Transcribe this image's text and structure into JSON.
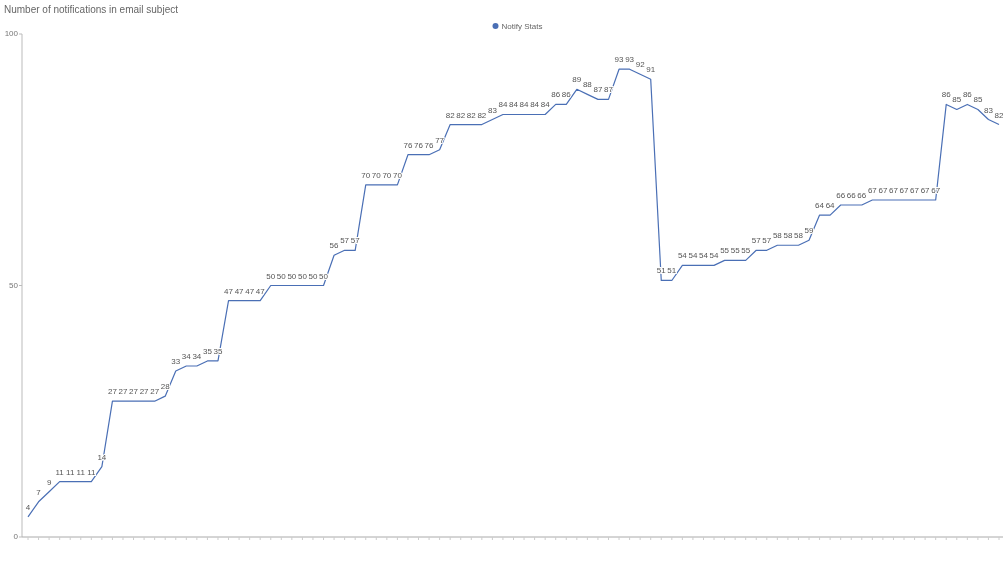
{
  "chart_data": {
    "type": "line",
    "title": "Number of notifications in email subject",
    "categories": [
      null,
      null,
      null,
      null,
      null,
      null,
      null,
      null,
      null,
      null,
      null,
      null,
      null,
      null,
      null,
      null,
      null,
      null,
      null,
      null,
      null,
      null,
      null,
      null,
      null,
      null,
      null,
      null,
      null,
      null,
      null,
      null,
      null,
      null,
      null,
      null,
      null,
      null,
      null,
      null,
      null,
      null,
      null,
      null,
      null,
      null,
      null,
      null,
      null,
      null,
      null,
      null,
      null,
      null,
      null,
      null,
      null,
      null,
      null,
      null,
      null,
      null,
      null,
      null,
      null,
      null,
      null,
      null,
      null,
      null,
      null,
      null,
      null,
      null,
      null,
      null,
      null,
      null,
      null,
      null,
      null,
      null,
      null,
      null,
      null,
      null,
      null,
      null,
      null,
      null,
      null,
      null,
      null
    ],
    "series": [
      {
        "name": "Notify Stats",
        "color": "#4a6fb5",
        "values": [
          4,
          7,
          9,
          11,
          11,
          11,
          11,
          14,
          27,
          27,
          27,
          27,
          27,
          28,
          33,
          34,
          34,
          35,
          35,
          47,
          47,
          47,
          47,
          50,
          50,
          50,
          50,
          50,
          50,
          56,
          57,
          57,
          70,
          70,
          70,
          70,
          76,
          76,
          76,
          77,
          82,
          82,
          82,
          82,
          83,
          84,
          84,
          84,
          84,
          84,
          86,
          86,
          89,
          88,
          87,
          87,
          93,
          93,
          92,
          91,
          51,
          51,
          54,
          54,
          54,
          54,
          55,
          55,
          55,
          57,
          57,
          58,
          58,
          58,
          59,
          64,
          64,
          66,
          66,
          66,
          67,
          67,
          67,
          67,
          67,
          67,
          67,
          86,
          85,
          86,
          85,
          83,
          82
        ]
      }
    ],
    "ylim": [
      0,
      100
    ],
    "yticks": [
      0,
      50,
      100
    ],
    "data_labels": true,
    "legend": "top",
    "grid": false
  }
}
